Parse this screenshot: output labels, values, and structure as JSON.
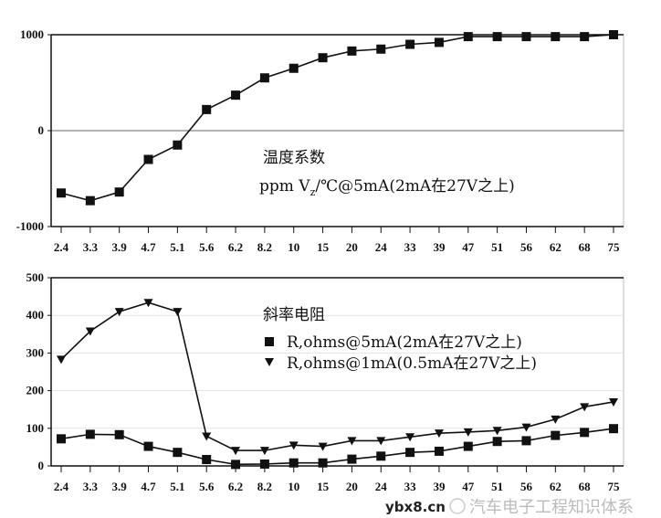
{
  "chart_data": [
    {
      "type": "line",
      "categories": [
        "2.4",
        "3.3",
        "3.9",
        "4.7",
        "5.1",
        "5.6",
        "6.2",
        "8.2",
        "10",
        "15",
        "20",
        "24",
        "33",
        "39",
        "47",
        "51",
        "56",
        "62",
        "68",
        "75"
      ],
      "ylim": [
        -1000,
        1000
      ],
      "yticks": [
        "1000",
        "0",
        "-1000"
      ],
      "ytick_values": [
        1000,
        0,
        -1000
      ],
      "grid": false,
      "annotation_title": "温度系数",
      "annotation_sub": {
        "pre": "ppm V",
        "sub": "z",
        "post": "/℃@5mA(2mA在27V之上)"
      },
      "series": [
        {
          "marker": "square",
          "color": "#111111",
          "values": [
            -650,
            -730,
            -640,
            -300,
            -150,
            220,
            370,
            550,
            650,
            760,
            830,
            850,
            900,
            920,
            980,
            980,
            980,
            980,
            980,
            1000
          ]
        }
      ]
    },
    {
      "type": "line",
      "categories": [
        "2.4",
        "3.3",
        "3.9",
        "4.7",
        "5.1",
        "5.6",
        "6.2",
        "8.2",
        "10",
        "15",
        "20",
        "24",
        "33",
        "39",
        "47",
        "51",
        "56",
        "62",
        "68",
        "75"
      ],
      "ylim": [
        0,
        500
      ],
      "yticks": [
        "500",
        "400",
        "300",
        "200",
        "100",
        "0"
      ],
      "ytick_values": [
        500,
        400,
        300,
        200,
        100,
        0
      ],
      "grid": true,
      "legend_title": "斜率电阻",
      "legend_placement": "top-center",
      "series": [
        {
          "name": "R,ohms@5mA(2mA在27V之上)",
          "marker": "square",
          "color": "#111111",
          "values": [
            72,
            84,
            83,
            52,
            36,
            17,
            4,
            5,
            8,
            8,
            18,
            26,
            36,
            39,
            52,
            65,
            67,
            81,
            89,
            99
          ]
        },
        {
          "name": "R,ohms@1mA(0.5mA在27V之上)",
          "marker": "triangle-down",
          "color": "#111111",
          "values": [
            283,
            358,
            410,
            434,
            410,
            79,
            41,
            41,
            55,
            52,
            67,
            67,
            77,
            87,
            90,
            94,
            103,
            124,
            157,
            170
          ]
        }
      ]
    }
  ],
  "watermark": {
    "text": "汽车电子工程知识体系",
    "site": "ybx8.cn",
    "icon": "wechat-icon"
  }
}
